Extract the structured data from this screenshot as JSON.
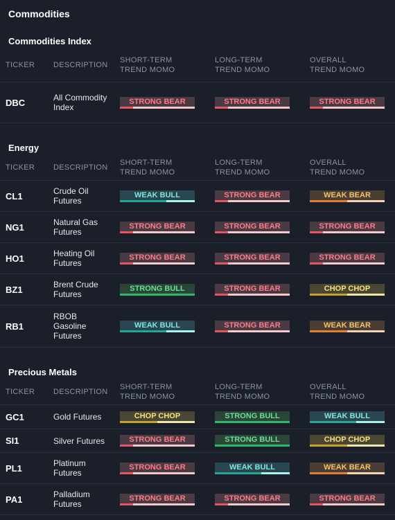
{
  "title": "Commodities",
  "headers": {
    "ticker": "TICKER",
    "description": "DESCRIPTION",
    "short_term": "SHORT-TERM TREND MOMO",
    "long_term": "LONG-TERM TREND MOMO",
    "overall": "OVERALL TREND MOMO"
  },
  "sections": [
    {
      "name": "Commodities Index",
      "rows": [
        {
          "ticker": "DBC",
          "description": "All Commodity Index",
          "short": "STRONG BEAR",
          "long": "STRONG BEAR",
          "overall": "STRONG BEAR"
        }
      ]
    },
    {
      "name": "Energy",
      "rows": [
        {
          "ticker": "CL1",
          "description": "Crude Oil Futures",
          "short": "WEAK BULL",
          "long": "STRONG BEAR",
          "overall": "WEAK BEAR"
        },
        {
          "ticker": "NG1",
          "description": "Natural Gas Futures",
          "short": "STRONG BEAR",
          "long": "STRONG BEAR",
          "overall": "STRONG BEAR"
        },
        {
          "ticker": "HO1",
          "description": "Heating Oil Futures",
          "short": "STRONG BEAR",
          "long": "STRONG BEAR",
          "overall": "STRONG BEAR"
        },
        {
          "ticker": "BZ1",
          "description": "Brent Crude Futures",
          "short": "STRONG BULL",
          "long": "STRONG BEAR",
          "overall": "CHOP CHOP"
        },
        {
          "ticker": "RB1",
          "description": "RBOB Gasoline Futures",
          "short": "WEAK BULL",
          "long": "STRONG BEAR",
          "overall": "WEAK BEAR"
        }
      ]
    },
    {
      "name": "Precious Metals",
      "rows": [
        {
          "ticker": "GC1",
          "description": "Gold Futures",
          "short": "CHOP CHOP",
          "long": "STRONG BULL",
          "overall": "WEAK BULL"
        },
        {
          "ticker": "SI1",
          "description": "Silver Futures",
          "short": "STRONG BEAR",
          "long": "STRONG BULL",
          "overall": "CHOP CHOP"
        },
        {
          "ticker": "PL1",
          "description": "Platinum Futures",
          "short": "STRONG BEAR",
          "long": "WEAK BULL",
          "overall": "WEAK BEAR"
        },
        {
          "ticker": "PA1",
          "description": "Palladium Futures",
          "short": "STRONG BEAR",
          "long": "STRONG BEAR",
          "overall": "STRONG BEAR"
        }
      ]
    }
  ],
  "colors": {
    "strong_bear": "#e25561",
    "weak_bull": "#1fa896",
    "strong_bull": "#2fba6a",
    "weak_bear": "#e37f2f",
    "chop": "#c9a424"
  }
}
